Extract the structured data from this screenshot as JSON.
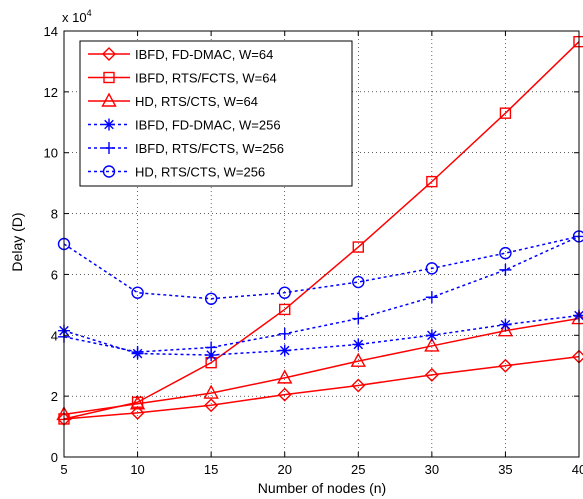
{
  "chart_data": {
    "type": "line",
    "xlabel": "Number of nodes (n)",
    "ylabel": "Delay (D)",
    "y_exponent_label": "x 10",
    "y_exponent_power": "4",
    "xlim": [
      5,
      40
    ],
    "ylim": [
      0,
      140000
    ],
    "x_ticks": [
      5,
      10,
      15,
      20,
      25,
      30,
      35,
      40
    ],
    "y_ticks": [
      0,
      20000,
      40000,
      60000,
      80000,
      100000,
      120000,
      140000
    ],
    "y_tick_labels": [
      "0",
      "2",
      "4",
      "6",
      "8",
      "10",
      "12",
      "14"
    ],
    "grid": true,
    "legend_position": "top-left",
    "x": [
      5,
      10,
      15,
      20,
      25,
      30,
      35,
      40
    ],
    "series": [
      {
        "name": "IBFD, FD-DMAC, W=64",
        "color": "#ff0000",
        "dash": "solid",
        "marker": "diamond",
        "values": [
          12500,
          14500,
          17000,
          20500,
          23500,
          27000,
          30000,
          33000
        ]
      },
      {
        "name": "IBFD, RTS/FCTS, W=64",
        "color": "#ff0000",
        "dash": "solid",
        "marker": "square",
        "values": [
          12500,
          18000,
          31000,
          48500,
          69000,
          90500,
          113000,
          136500
        ]
      },
      {
        "name": "HD, RTS/CTS, W=64",
        "color": "#ff0000",
        "dash": "solid",
        "marker": "triangle",
        "values": [
          14000,
          17500,
          21000,
          26000,
          31500,
          36500,
          41500,
          45500
        ]
      },
      {
        "name": "IBFD, FD-DMAC, W=256",
        "color": "#0000ff",
        "dash": "dotted",
        "marker": "asterisk",
        "values": [
          41500,
          34000,
          33500,
          35000,
          37000,
          40000,
          43500,
          46500
        ]
      },
      {
        "name": "IBFD, RTS/FCTS, W=256",
        "color": "#0000ff",
        "dash": "dotted",
        "marker": "plus",
        "values": [
          39500,
          34500,
          36000,
          40500,
          45500,
          52500,
          61500,
          72500
        ]
      },
      {
        "name": "HD, RTS/CTS, W=256",
        "color": "#0000ff",
        "dash": "dotted",
        "marker": "circle",
        "values": [
          70000,
          54000,
          52000,
          54000,
          57500,
          62000,
          67000,
          72500
        ]
      }
    ]
  }
}
